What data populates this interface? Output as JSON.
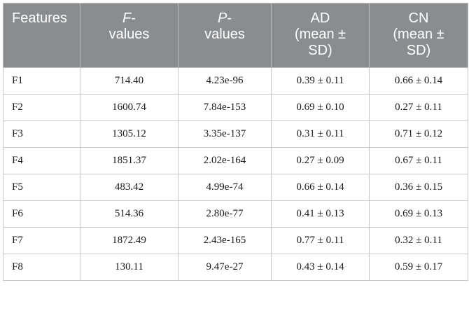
{
  "table": {
    "headers": {
      "features": "Features",
      "f_letter": "F",
      "f_rest": "-",
      "f_line2": "values",
      "p_letter": "P",
      "p_rest": "-",
      "p_line2": "values",
      "ad_line1": "AD",
      "ad_line2": "(mean ±",
      "ad_line3": "SD)",
      "cn_line1": "CN",
      "cn_line2": "(mean ±",
      "cn_line3": "SD)"
    },
    "rows": [
      {
        "feature": "F1",
        "f": "714.40",
        "p": "4.23e-96",
        "ad": "0.39 ± 0.11",
        "cn": "0.66 ± 0.14"
      },
      {
        "feature": "F2",
        "f": "1600.74",
        "p": "7.84e-153",
        "ad": "0.69 ± 0.10",
        "cn": "0.27 ± 0.11"
      },
      {
        "feature": "F3",
        "f": "1305.12",
        "p": "3.35e-137",
        "ad": "0.31 ± 0.11",
        "cn": "0.71 ± 0.12"
      },
      {
        "feature": "F4",
        "f": "1851.37",
        "p": "2.02e-164",
        "ad": "0.27 ± 0.09",
        "cn": "0.67 ± 0.11"
      },
      {
        "feature": "F5",
        "f": "483.42",
        "p": "4.99e-74",
        "ad": "0.66 ± 0.14",
        "cn": "0.36 ± 0.15"
      },
      {
        "feature": "F6",
        "f": "514.36",
        "p": "2.80e-77",
        "ad": "0.41 ± 0.13",
        "cn": "0.69 ± 0.13"
      },
      {
        "feature": "F7",
        "f": "1872.49",
        "p": "2.43e-165",
        "ad": "0.77 ± 0.11",
        "cn": "0.32 ± 0.11"
      },
      {
        "feature": "F8",
        "f": "130.11",
        "p": "9.47e-27",
        "ad": "0.43 ± 0.14",
        "cn": "0.59 ± 0.17"
      }
    ]
  },
  "colors": {
    "header_bg": "#8a8d8f",
    "header_text": "#ffffff",
    "border": "#c8c8c8"
  }
}
